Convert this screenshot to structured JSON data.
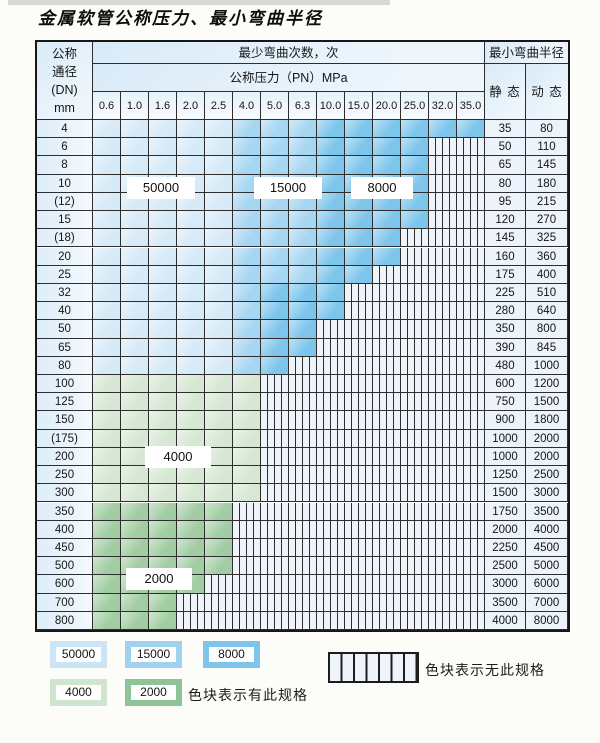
{
  "title": "金属软管公称压力、最小弯曲半径",
  "table": {
    "header": {
      "dn_lines": [
        "公称",
        "通径",
        "(DN)",
        "mm"
      ],
      "bend_cycles": "最少弯曲次数，次",
      "pressure": "公称压力（PN）MPa",
      "min_bend_radius": "最小弯曲半径",
      "static": "静 态",
      "dynamic": "动 态"
    }
  },
  "zone_labels": [
    "50000",
    "15000",
    "8000",
    "4000",
    "2000"
  ],
  "colors": {
    "L": "#d6eaf8",
    "M": "#a6d6f2",
    "D": "#7ec5ec",
    "G": "#d6e8d3",
    "E": "#a2cda2",
    "hatch_bg": "#eef4fa",
    "grid": "#2e2e2e"
  },
  "legend": {
    "swatches": [
      {
        "label": "50000",
        "color": "#cbe4f6"
      },
      {
        "label": "15000",
        "color": "#a0d2f0"
      },
      {
        "label": "8000",
        "color": "#7ec5ec"
      },
      {
        "label": "4000",
        "color": "#cfe5cd"
      },
      {
        "label": "2000",
        "color": "#8fc498"
      }
    ],
    "has_spec_note": "色块表示有此规格",
    "no_spec_note": "色块表示无此规格"
  },
  "chart_data": {
    "type": "heatmap",
    "title": "金属软管公称压力、最小弯曲半径",
    "x_label": "公称压力（PN）MPa",
    "x_categories": [
      "0.6",
      "1.0",
      "1.6",
      "2.0",
      "2.5",
      "4.0",
      "5.0",
      "6.3",
      "10.0",
      "15.0",
      "20.0",
      "25.0",
      "32.0",
      "35.0"
    ],
    "y_label": "公称通径 (DN) mm",
    "cell_codes": {
      "L": "有此规格，最少弯曲次数 50000 次",
      "M": "有此规格，最少弯曲次数 15000 次",
      "D": "有此规格，最少弯曲次数 8000 次",
      "G": "有此规格，最少弯曲次数 4000 次",
      "E": "有此规格，最少弯曲次数 2000 次",
      "H": "无此规格"
    },
    "radius_columns": [
      "静态",
      "动态"
    ],
    "rows": [
      {
        "dn": "4",
        "cells": "LLLLLMMMDDDDDD",
        "static": "35",
        "dynamic": "80"
      },
      {
        "dn": "6",
        "cells": "LLLLLMMMDDDDHH",
        "static": "50",
        "dynamic": "110"
      },
      {
        "dn": "8",
        "cells": "LLLLLMMMDDDDHH",
        "static": "65",
        "dynamic": "145"
      },
      {
        "dn": "10",
        "cells": "LLLLLMMMDDDDHH",
        "static": "80",
        "dynamic": "180"
      },
      {
        "dn": "(12)",
        "cells": "LLLLLMMMDDDDHH",
        "static": "95",
        "dynamic": "215"
      },
      {
        "dn": "15",
        "cells": "LLLLLMMMDDDDHH",
        "static": "120",
        "dynamic": "270"
      },
      {
        "dn": "(18)",
        "cells": "LLLLLMMMDDDHHH",
        "static": "145",
        "dynamic": "325"
      },
      {
        "dn": "20",
        "cells": "LLLLLMMMDDDHHH",
        "static": "160",
        "dynamic": "360"
      },
      {
        "dn": "25",
        "cells": "LLLLLMMMDDHHHH",
        "static": "175",
        "dynamic": "400"
      },
      {
        "dn": "32",
        "cells": "LLLLLMDDDHHHHH",
        "static": "225",
        "dynamic": "510"
      },
      {
        "dn": "40",
        "cells": "LLLLLMDDDHHHHH",
        "static": "280",
        "dynamic": "640"
      },
      {
        "dn": "50",
        "cells": "LLLLLMDDHHHHHH",
        "static": "350",
        "dynamic": "800"
      },
      {
        "dn": "65",
        "cells": "LLLLLMDDHHHHHH",
        "static": "390",
        "dynamic": "845"
      },
      {
        "dn": "80",
        "cells": "LLLLLMDHHHHHHH",
        "static": "480",
        "dynamic": "1000"
      },
      {
        "dn": "100",
        "cells": "GGGGGGHHHHHHHH",
        "static": "600",
        "dynamic": "1200"
      },
      {
        "dn": "125",
        "cells": "GGGGGGHHHHHHHH",
        "static": "750",
        "dynamic": "1500"
      },
      {
        "dn": "150",
        "cells": "GGGGGGHHHHHHHH",
        "static": "900",
        "dynamic": "1800"
      },
      {
        "dn": "(175)",
        "cells": "GGGGGGHHHHHHHH",
        "static": "1000",
        "dynamic": "2000"
      },
      {
        "dn": "200",
        "cells": "GGGGGGHHHHHHHH",
        "static": "1000",
        "dynamic": "2000"
      },
      {
        "dn": "250",
        "cells": "GGGGGGHHHHHHHH",
        "static": "1250",
        "dynamic": "2500"
      },
      {
        "dn": "300",
        "cells": "GGGGGGHHHHHHHH",
        "static": "1500",
        "dynamic": "3000"
      },
      {
        "dn": "350",
        "cells": "EEEEEHHHHHHHHH",
        "static": "1750",
        "dynamic": "3500"
      },
      {
        "dn": "400",
        "cells": "EEEEEHHHHHHHHH",
        "static": "2000",
        "dynamic": "4000"
      },
      {
        "dn": "450",
        "cells": "EEEEEHHHHHHHHH",
        "static": "2250",
        "dynamic": "4500"
      },
      {
        "dn": "500",
        "cells": "EEEEEHHHHHHHHH",
        "static": "2500",
        "dynamic": "5000"
      },
      {
        "dn": "600",
        "cells": "EEEEHHHHHHHHHH",
        "static": "3000",
        "dynamic": "6000"
      },
      {
        "dn": "700",
        "cells": "EEEHHHHHHHHHHH",
        "static": "3500",
        "dynamic": "7000"
      },
      {
        "dn": "800",
        "cells": "EEEHHHHHHHHHHH",
        "static": "4000",
        "dynamic": "8000"
      }
    ]
  }
}
